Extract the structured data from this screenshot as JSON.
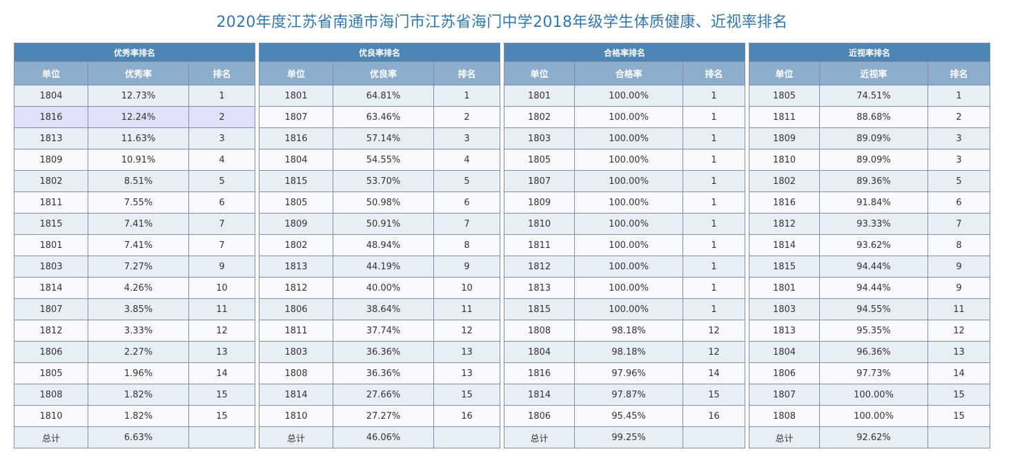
{
  "title": "2020年度江苏省南通市海门市江苏省海门中学2018年级学生体质健康、近视率排名",
  "tables": [
    {
      "title": "优秀率排名",
      "headers": [
        "单位",
        "优秀率",
        "排名"
      ],
      "rows": [
        [
          "1804",
          "12.73%",
          "1"
        ],
        [
          "1816",
          "12.24%",
          "2"
        ],
        [
          "1813",
          "11.63%",
          "3"
        ],
        [
          "1809",
          "10.91%",
          "4"
        ],
        [
          "1802",
          "8.51%",
          "5"
        ],
        [
          "1811",
          "7.55%",
          "6"
        ],
        [
          "1815",
          "7.41%",
          "7"
        ],
        [
          "1801",
          "7.41%",
          "7"
        ],
        [
          "1803",
          "7.27%",
          "9"
        ],
        [
          "1814",
          "4.26%",
          "10"
        ],
        [
          "1807",
          "3.85%",
          "11"
        ],
        [
          "1812",
          "3.33%",
          "12"
        ],
        [
          "1806",
          "2.27%",
          "13"
        ],
        [
          "1805",
          "1.96%",
          "14"
        ],
        [
          "1808",
          "1.82%",
          "15"
        ],
        [
          "1810",
          "1.82%",
          "15"
        ]
      ],
      "total": [
        "总计",
        "6.63%",
        ""
      ],
      "highlight_row": 1
    },
    {
      "title": "优良率排名",
      "headers": [
        "单位",
        "优良率",
        "排名"
      ],
      "rows": [
        [
          "1801",
          "64.81%",
          "1"
        ],
        [
          "1807",
          "63.46%",
          "2"
        ],
        [
          "1816",
          "57.14%",
          "3"
        ],
        [
          "1804",
          "54.55%",
          "4"
        ],
        [
          "1815",
          "53.70%",
          "5"
        ],
        [
          "1805",
          "50.98%",
          "6"
        ],
        [
          "1809",
          "50.91%",
          "7"
        ],
        [
          "1802",
          "48.94%",
          "8"
        ],
        [
          "1813",
          "44.19%",
          "9"
        ],
        [
          "1812",
          "40.00%",
          "10"
        ],
        [
          "1806",
          "38.64%",
          "11"
        ],
        [
          "1811",
          "37.74%",
          "12"
        ],
        [
          "1803",
          "36.36%",
          "13"
        ],
        [
          "1808",
          "36.36%",
          "13"
        ],
        [
          "1814",
          "27.66%",
          "15"
        ],
        [
          "1810",
          "27.27%",
          "16"
        ]
      ],
      "total": [
        "总计",
        "46.06%",
        ""
      ]
    },
    {
      "title": "合格率排名",
      "headers": [
        "单位",
        "合格率",
        "排名"
      ],
      "rows": [
        [
          "1801",
          "100.00%",
          "1"
        ],
        [
          "1802",
          "100.00%",
          "1"
        ],
        [
          "1803",
          "100.00%",
          "1"
        ],
        [
          "1805",
          "100.00%",
          "1"
        ],
        [
          "1807",
          "100.00%",
          "1"
        ],
        [
          "1809",
          "100.00%",
          "1"
        ],
        [
          "1810",
          "100.00%",
          "1"
        ],
        [
          "1811",
          "100.00%",
          "1"
        ],
        [
          "1812",
          "100.00%",
          "1"
        ],
        [
          "1813",
          "100.00%",
          "1"
        ],
        [
          "1815",
          "100.00%",
          "1"
        ],
        [
          "1808",
          "98.18%",
          "12"
        ],
        [
          "1804",
          "98.18%",
          "12"
        ],
        [
          "1816",
          "97.96%",
          "14"
        ],
        [
          "1814",
          "97.87%",
          "15"
        ],
        [
          "1806",
          "95.45%",
          "16"
        ]
      ],
      "total": [
        "总计",
        "99.25%",
        ""
      ]
    },
    {
      "title": "近视率排名",
      "headers": [
        "单位",
        "近视率",
        "排名"
      ],
      "rows": [
        [
          "1805",
          "74.51%",
          "1"
        ],
        [
          "1811",
          "88.68%",
          "2"
        ],
        [
          "1809",
          "89.09%",
          "3"
        ],
        [
          "1810",
          "89.09%",
          "3"
        ],
        [
          "1802",
          "89.36%",
          "5"
        ],
        [
          "1816",
          "91.84%",
          "6"
        ],
        [
          "1812",
          "93.33%",
          "7"
        ],
        [
          "1814",
          "93.62%",
          "8"
        ],
        [
          "1815",
          "94.44%",
          "9"
        ],
        [
          "1801",
          "94.44%",
          "9"
        ],
        [
          "1803",
          "94.55%",
          "11"
        ],
        [
          "1813",
          "95.35%",
          "12"
        ],
        [
          "1804",
          "96.36%",
          "13"
        ],
        [
          "1806",
          "97.73%",
          "14"
        ],
        [
          "1807",
          "100.00%",
          "15"
        ],
        [
          "1808",
          "100.00%",
          "15"
        ]
      ],
      "total": [
        "总计",
        "92.62%",
        ""
      ]
    }
  ]
}
